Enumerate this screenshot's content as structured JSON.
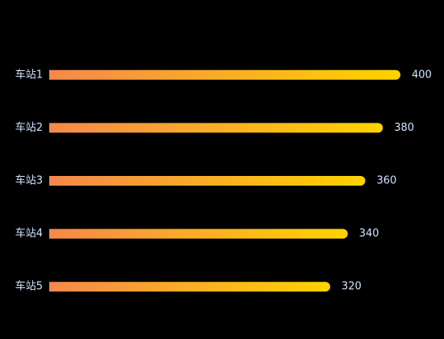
{
  "chart_data": {
    "type": "bar",
    "orientation": "horizontal",
    "categories": [
      "车站1",
      "车站2",
      "车站3",
      "车站4",
      "车站5"
    ],
    "values": [
      400,
      380,
      360,
      340,
      320
    ],
    "color": [
      "#f5884b",
      "#ffd300"
    ],
    "xlim": [
      0,
      400
    ]
  }
}
